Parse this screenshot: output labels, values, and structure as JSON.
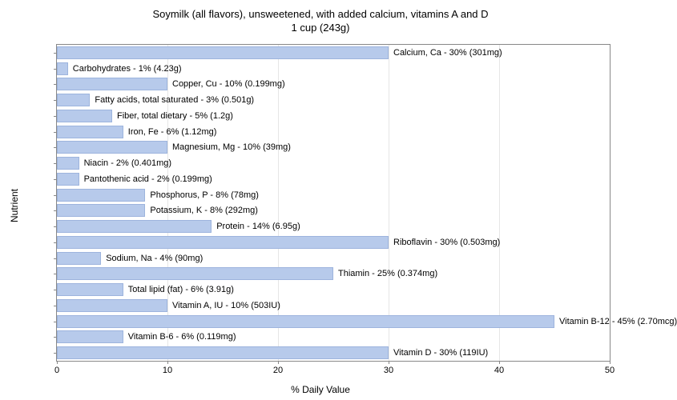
{
  "chart": {
    "type": "bar-horizontal",
    "title_line1": "Soymilk (all flavors), unsweetened, with added calcium, vitamins A and D",
    "title_line2": "1 cup (243g)",
    "title_fontsize": 13,
    "x_axis_label": "% Daily Value",
    "y_axis_label": "Nutrient",
    "axis_label_fontsize": 12,
    "xlim": [
      0,
      50
    ],
    "x_ticks": [
      0,
      10,
      20,
      30,
      40,
      50
    ],
    "bar_color": "#b7caeb",
    "bar_border_color": "#9db4dd",
    "grid_color": "#e6e6e6",
    "background_color": "#ffffff",
    "plot_border_color": "#888888",
    "bar_label_fontsize": 11,
    "tick_fontsize": 11,
    "bars": [
      {
        "label": "Calcium, Ca - 30% (301mg)",
        "value": 30
      },
      {
        "label": "Carbohydrates - 1% (4.23g)",
        "value": 1
      },
      {
        "label": "Copper, Cu - 10% (0.199mg)",
        "value": 10
      },
      {
        "label": "Fatty acids, total saturated - 3% (0.501g)",
        "value": 3
      },
      {
        "label": "Fiber, total dietary - 5% (1.2g)",
        "value": 5
      },
      {
        "label": "Iron, Fe - 6% (1.12mg)",
        "value": 6
      },
      {
        "label": "Magnesium, Mg - 10% (39mg)",
        "value": 10
      },
      {
        "label": "Niacin - 2% (0.401mg)",
        "value": 2
      },
      {
        "label": "Pantothenic acid - 2% (0.199mg)",
        "value": 2
      },
      {
        "label": "Phosphorus, P - 8% (78mg)",
        "value": 8
      },
      {
        "label": "Potassium, K - 8% (292mg)",
        "value": 8
      },
      {
        "label": "Protein - 14% (6.95g)",
        "value": 14
      },
      {
        "label": "Riboflavin - 30% (0.503mg)",
        "value": 30
      },
      {
        "label": "Sodium, Na - 4% (90mg)",
        "value": 4
      },
      {
        "label": "Thiamin - 25% (0.374mg)",
        "value": 25
      },
      {
        "label": "Total lipid (fat) - 6% (3.91g)",
        "value": 6
      },
      {
        "label": "Vitamin A, IU - 10% (503IU)",
        "value": 10
      },
      {
        "label": "Vitamin B-12 - 45% (2.70mcg)",
        "value": 45
      },
      {
        "label": "Vitamin B-6 - 6% (0.119mg)",
        "value": 6
      },
      {
        "label": "Vitamin D - 30% (119IU)",
        "value": 30
      }
    ]
  }
}
